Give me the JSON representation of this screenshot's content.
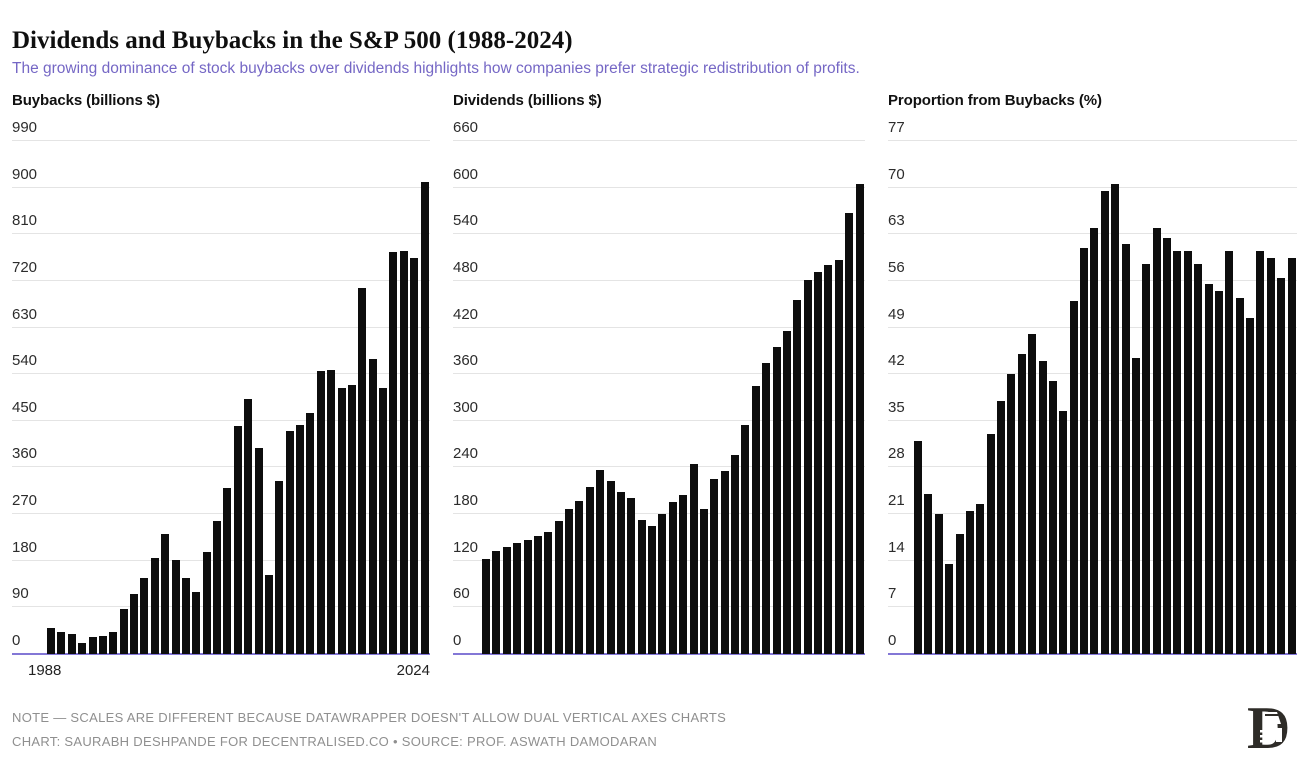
{
  "page": {
    "title": "Dividends and Buybacks in the S&P 500 (1988-2024)",
    "subtitle": "The growing dominance of stock buybacks over dividends highlights how companies prefer strategic redistribution of profits."
  },
  "colors": {
    "subtitle_purple": "#7567C5",
    "bar_black": "#0d0d0d",
    "gridline_gray": "#e4e4e4",
    "axis_baseline_purple": "#8377d6",
    "footer_gray": "#8f8f8f"
  },
  "footer": {
    "note": "NOTE — SCALES ARE DIFFERENT BECAUSE DATAWRAPPER DOESN'T ALLOW DUAL VERTICAL AXES CHARTS",
    "credit": "CHART: SAURABH DESHPANDE FOR DECENTRALISED.CO • SOURCE: PROF. ASWATH DAMODARAN",
    "logo": "decentralised-d-logo"
  },
  "chart_data": {
    "type": "bar",
    "x_axis": {
      "label_left": "1988",
      "label_right": "2024"
    },
    "years": [
      1988,
      1989,
      1990,
      1991,
      1992,
      1993,
      1994,
      1995,
      1996,
      1997,
      1998,
      1999,
      2000,
      2001,
      2002,
      2003,
      2004,
      2005,
      2006,
      2007,
      2008,
      2009,
      2010,
      2011,
      2012,
      2013,
      2014,
      2015,
      2016,
      2017,
      2018,
      2019,
      2020,
      2021,
      2022,
      2023,
      2024
    ],
    "charts": [
      {
        "title": "Buybacks (billions $)",
        "ylim": [
          0,
          990
        ],
        "yticks": [
          0,
          90,
          180,
          270,
          360,
          450,
          540,
          630,
          720,
          810,
          900,
          990
        ],
        "values": [
          51,
          42,
          38,
          22,
          33,
          35,
          42,
          86,
          116,
          146,
          186,
          231,
          181,
          146,
          120,
          197,
          256,
          320,
          440,
          492,
          397,
          152,
          333,
          431,
          441,
          466,
          547,
          549,
          513,
          519,
          707,
          570,
          514,
          776,
          778,
          765,
          910
        ]
      },
      {
        "title": "Dividends (billions $)",
        "ylim": [
          0,
          660
        ],
        "yticks": [
          0,
          60,
          120,
          180,
          240,
          300,
          360,
          420,
          480,
          540,
          600,
          660
        ],
        "values": [
          122,
          133,
          138,
          143,
          147,
          152,
          157,
          171,
          187,
          197,
          215,
          237,
          222,
          208,
          201,
          172,
          165,
          180,
          195,
          205,
          245,
          186,
          225,
          236,
          256,
          295,
          345,
          375,
          395,
          416,
          456,
          481,
          492,
          501,
          507,
          568,
          605
        ]
      },
      {
        "title": "Proportion from Buybacks (%)",
        "ylim": [
          0,
          77
        ],
        "yticks": [
          0,
          7,
          14,
          21,
          28,
          35,
          42,
          49,
          56,
          63,
          70,
          77
        ],
        "values": [
          32,
          24,
          21,
          13.5,
          18,
          21.5,
          22.5,
          33,
          38,
          42,
          45,
          48,
          44,
          41,
          36.5,
          53,
          61,
          64,
          69.5,
          70.5,
          61.5,
          44.5,
          58.5,
          64,
          62.5,
          60.5,
          60.5,
          58.5,
          55.5,
          54.5,
          60.5,
          53.5,
          50.5,
          60.5,
          59.5,
          56.5,
          59.5
        ]
      }
    ]
  }
}
